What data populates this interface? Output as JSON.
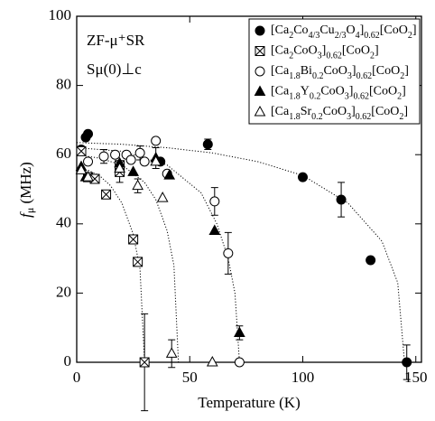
{
  "chart_data": {
    "type": "scatter",
    "xlabel": "Temperature (K)",
    "ylabel": "fμ (MHz)",
    "annotations": [
      "ZF-μ⁺SR",
      "Sμ(0)⊥c"
    ],
    "xlim": [
      0,
      152.5
    ],
    "ylim": [
      0,
      100
    ],
    "xticks": [
      0,
      50,
      100,
      150
    ],
    "yticks": [
      0,
      20,
      40,
      60,
      80,
      100
    ],
    "series": [
      {
        "name": "[Ca2Co4/3Cu2/3O4]0.62[CoO2]",
        "marker": "filled-circle",
        "color": "#000000",
        "x": [
          2,
          4,
          5,
          37,
          58,
          100,
          117,
          130,
          146
        ],
        "values": [
          61.5,
          65,
          66,
          58,
          63,
          53.5,
          47,
          29.5,
          0
        ],
        "errors": [
          null,
          null,
          null,
          null,
          1.5,
          null,
          5,
          null,
          5
        ]
      },
      {
        "name": "[Ca2CoO3]0.62[CoO2]",
        "marker": "crossed-square",
        "color": "#000000",
        "x": [
          2,
          5,
          8,
          13,
          19,
          19,
          25,
          27,
          30
        ],
        "values": [
          61,
          53.5,
          53,
          48.5,
          55,
          57,
          35.5,
          29,
          0
        ],
        "errors": [
          null,
          null,
          null,
          null,
          3,
          null,
          null,
          null,
          14
        ]
      },
      {
        "name": "[Ca1.8Bi0.2CoO3]0.62[CoO2]",
        "marker": "open-circle",
        "color": "#000000",
        "x": [
          5,
          12,
          17,
          22,
          24,
          28,
          30,
          35,
          40,
          61,
          67,
          72
        ],
        "values": [
          58,
          59.5,
          60,
          60,
          58.5,
          60.5,
          58,
          64,
          54.5,
          46.5,
          31.5,
          0
        ],
        "errors": [
          null,
          2,
          null,
          null,
          null,
          2,
          null,
          null,
          null,
          4,
          6,
          null
        ]
      },
      {
        "name": "[Ca1.8Y0.2CoO3]0.62[CoO2]",
        "marker": "filled-triangle",
        "color": "#000000",
        "x": [
          2,
          4,
          19,
          25,
          35,
          41,
          61,
          72
        ],
        "values": [
          56.5,
          53.5,
          57.5,
          55,
          59,
          54,
          38,
          8.5
        ],
        "errors": [
          null,
          null,
          null,
          null,
          3,
          null,
          null,
          2
        ]
      },
      {
        "name": "[Ca1.8Sr0.2CoO3]0.62[CoO2]",
        "marker": "open-triangle",
        "color": "#000000",
        "x": [
          2,
          5,
          19,
          27,
          35,
          38,
          42,
          60
        ],
        "values": [
          55.5,
          53.5,
          56,
          51,
          58,
          47.5,
          2.5,
          0
        ],
        "errors": [
          null,
          null,
          null,
          2,
          null,
          null,
          4,
          null
        ]
      }
    ],
    "curves": [
      {
        "x": [
          0,
          20,
          40,
          60,
          80,
          100,
          120,
          135,
          142,
          145
        ],
        "values": [
          63.5,
          63,
          62,
          60.5,
          58,
          54,
          46,
          35,
          23,
          0
        ]
      },
      {
        "x": [
          0,
          5,
          10,
          15,
          20,
          25,
          28,
          30
        ],
        "values": [
          56,
          55.5,
          54,
          51,
          46,
          37,
          27,
          0
        ]
      },
      {
        "x": [
          0,
          10,
          20,
          30,
          35,
          40,
          43,
          45
        ],
        "values": [
          60,
          59,
          57,
          52,
          47,
          38,
          28,
          0
        ]
      },
      {
        "x": [
          0,
          20,
          40,
          55,
          62,
          67,
          70,
          72
        ],
        "values": [
          62,
          61,
          57,
          49,
          40,
          30,
          20,
          0
        ]
      }
    ]
  }
}
